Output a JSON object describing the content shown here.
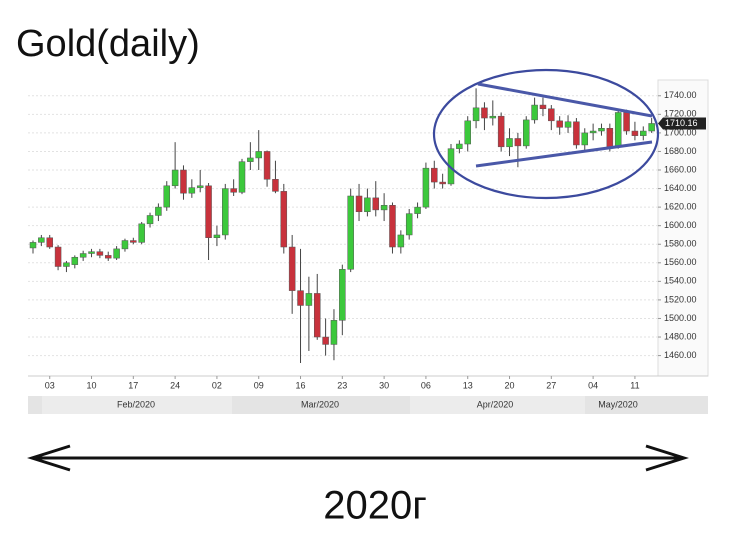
{
  "title": "Gold(daily)",
  "caption": "2020г",
  "chart_data": {
    "type": "candlestick",
    "categories": [
      null,
      null,
      "03",
      null,
      null,
      null,
      null,
      "10",
      null,
      null,
      null,
      null,
      "17",
      null,
      null,
      null,
      null,
      "24",
      null,
      null,
      null,
      null,
      "02",
      null,
      null,
      null,
      null,
      "09",
      null,
      null,
      null,
      null,
      "16",
      null,
      null,
      null,
      null,
      "23",
      null,
      null,
      null,
      null,
      "30",
      null,
      null,
      null,
      null,
      "06",
      null,
      null,
      null,
      null,
      "13",
      null,
      null,
      null,
      null,
      "20",
      null,
      null,
      null,
      null,
      "27",
      null,
      null,
      null,
      null,
      "04",
      null,
      null,
      null,
      null,
      "11",
      null,
      null
    ],
    "months": [
      "Feb/2020",
      "Mar/2020",
      "Apr/2020",
      "May/2020"
    ],
    "open": [
      1576,
      1582,
      1587,
      1577,
      1556,
      1558,
      1566,
      1570,
      1572,
      1568,
      1565,
      1575,
      1584,
      1582,
      1602,
      1611,
      1620,
      1643,
      1660,
      1635,
      1641,
      1643,
      1587,
      1590,
      1640,
      1636,
      1669,
      1673,
      1680,
      1650,
      1637,
      1577,
      1530,
      1514,
      1527,
      1480,
      1472,
      1498,
      1553,
      1632,
      1615,
      1630,
      1617,
      1622,
      1577,
      1590,
      1613,
      1620,
      1662,
      1647,
      1645,
      1683,
      1688,
      1713,
      1727,
      1716,
      1718,
      1685,
      1694,
      1686,
      1714,
      1730,
      1726,
      1713,
      1706,
      1712,
      1687,
      1700,
      1702,
      1705,
      1685,
      1722,
      1702,
      1697,
      1702
    ],
    "high": [
      1584,
      1590,
      1590,
      1579,
      1562,
      1568,
      1573,
      1575,
      1575,
      1572,
      1578,
      1586,
      1587,
      1604,
      1614,
      1624,
      1648,
      1690,
      1665,
      1650,
      1660,
      1646,
      1600,
      1645,
      1650,
      1672,
      1690,
      1703,
      1681,
      1670,
      1645,
      1590,
      1575,
      1545,
      1548,
      1500,
      1510,
      1558,
      1640,
      1645,
      1640,
      1648,
      1635,
      1625,
      1595,
      1618,
      1625,
      1668,
      1670,
      1656,
      1688,
      1692,
      1718,
      1748,
      1733,
      1735,
      1722,
      1705,
      1700,
      1718,
      1738,
      1738,
      1730,
      1718,
      1719,
      1716,
      1705,
      1710,
      1710,
      1710,
      1725,
      1725,
      1712,
      1707,
      1716
    ],
    "low": [
      1570,
      1578,
      1575,
      1552,
      1550,
      1554,
      1562,
      1566,
      1565,
      1562,
      1563,
      1572,
      1580,
      1580,
      1598,
      1605,
      1616,
      1640,
      1628,
      1630,
      1636,
      1563,
      1578,
      1585,
      1632,
      1634,
      1660,
      1660,
      1642,
      1635,
      1570,
      1505,
      1452,
      1465,
      1477,
      1460,
      1455,
      1482,
      1550,
      1605,
      1610,
      1610,
      1605,
      1570,
      1570,
      1585,
      1608,
      1618,
      1640,
      1640,
      1643,
      1678,
      1680,
      1705,
      1703,
      1708,
      1680,
      1675,
      1663,
      1683,
      1710,
      1718,
      1703,
      1698,
      1700,
      1683,
      1680,
      1692,
      1697,
      1680,
      1683,
      1698,
      1692,
      1692,
      1700
    ],
    "close": [
      1582,
      1587,
      1577,
      1556,
      1560,
      1566,
      1570,
      1572,
      1568,
      1565,
      1575,
      1584,
      1582,
      1602,
      1611,
      1620,
      1643,
      1660,
      1635,
      1641,
      1643,
      1587,
      1590,
      1640,
      1636,
      1669,
      1673,
      1680,
      1650,
      1637,
      1577,
      1530,
      1514,
      1527,
      1480,
      1472,
      1498,
      1553,
      1632,
      1615,
      1630,
      1617,
      1622,
      1577,
      1590,
      1613,
      1620,
      1662,
      1647,
      1645,
      1683,
      1688,
      1713,
      1727,
      1716,
      1718,
      1685,
      1694,
      1686,
      1714,
      1730,
      1726,
      1713,
      1706,
      1712,
      1687,
      1700,
      1702,
      1705,
      1685,
      1722,
      1702,
      1697,
      1702,
      1710.16
    ],
    "up_color": "#3cc83c",
    "down_color": "#c8323c",
    "ylim": [
      1438,
      1757
    ],
    "yticks": [
      {
        "value": 1460,
        "label": "1460.00"
      },
      {
        "value": 1480,
        "label": "1480.00"
      },
      {
        "value": 1500,
        "label": "1500.00"
      },
      {
        "value": 1520,
        "label": "1520.00"
      },
      {
        "value": 1540,
        "label": "1540.00"
      },
      {
        "value": 1560,
        "label": "1560.00"
      },
      {
        "value": 1580,
        "label": "1580.00"
      },
      {
        "value": 1600,
        "label": "1600.00"
      },
      {
        "value": 1620,
        "label": "1620.00"
      },
      {
        "value": 1640,
        "label": "1640.00"
      },
      {
        "value": 1660,
        "label": "1660.00"
      },
      {
        "value": 1680,
        "label": "1680.00"
      },
      {
        "value": 1700,
        "label": "1700.00"
      },
      {
        "value": 1720,
        "label": "1720.00"
      },
      {
        "value": 1740,
        "label": "1740.00"
      }
    ],
    "grid": true
  }
}
